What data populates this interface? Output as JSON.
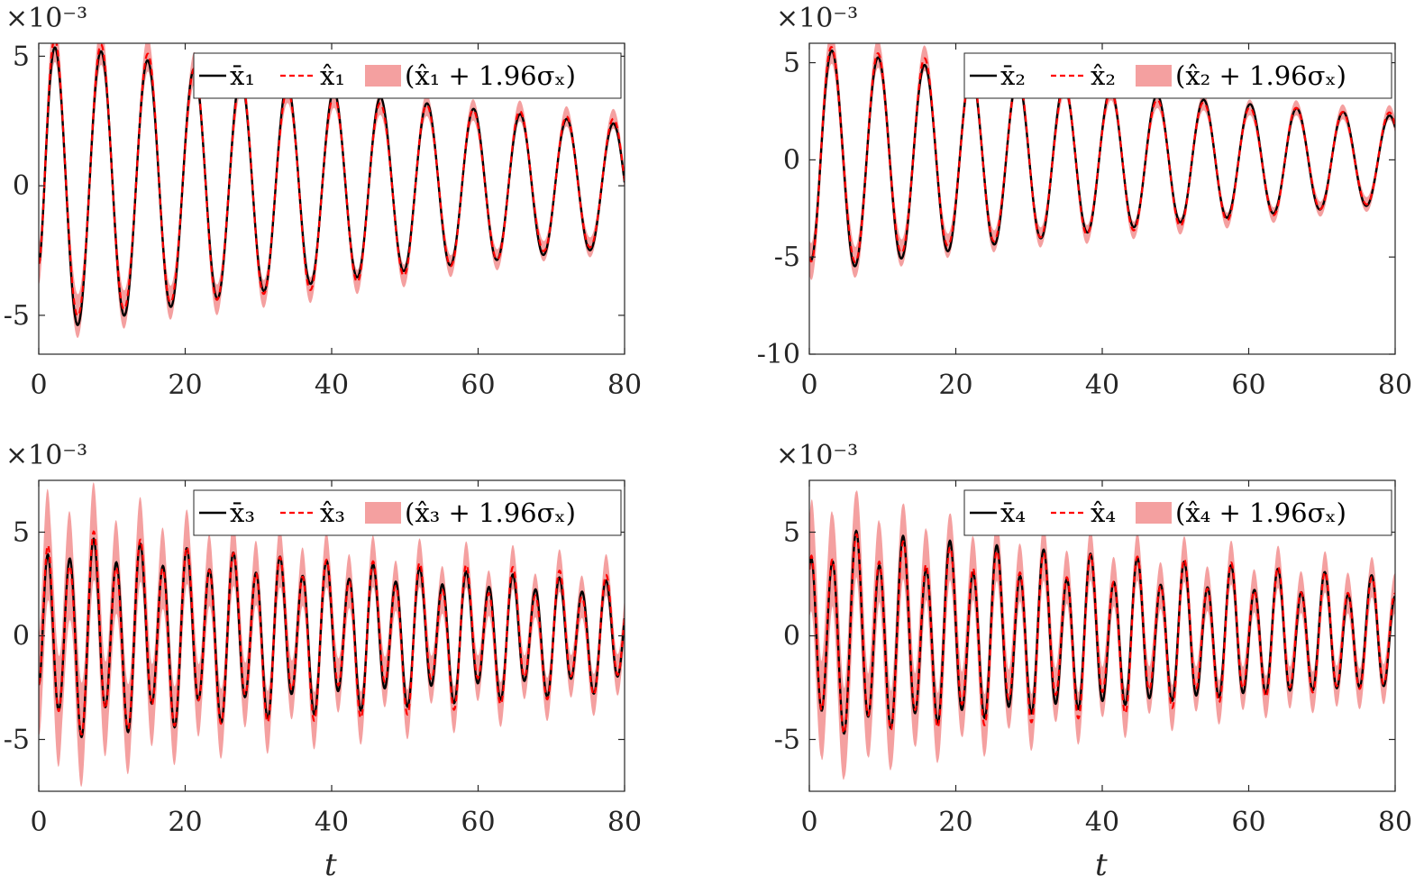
{
  "chart_data": [
    {
      "type": "line",
      "multiplier": "×10⁻³",
      "xlabel": "",
      "xlim": [
        0,
        80
      ],
      "ylim": [
        -6.5,
        5.5
      ],
      "xticks": [
        0,
        20,
        40,
        60,
        80
      ],
      "yticks": [
        -5,
        0,
        5
      ],
      "ytick_labels": [
        "-5",
        "0",
        "5"
      ],
      "signal": {
        "offset": -3.0,
        "amp": 5.7,
        "decay": 0.011,
        "period": 6.36,
        "phase": -0.55,
        "freq2_period": 0,
        "amp2": 0
      },
      "band_halfwidth": {
        "start": 0.8,
        "end": 0.35
      },
      "legend": [
        "x̄₁",
        "x̂₁",
        "(x̂₁ + 1.96σₓ)"
      ],
      "series": [
        {
          "name": "x̄₁",
          "style": "solid",
          "color": "#000000"
        },
        {
          "name": "x̂₁",
          "style": "dashed",
          "color": "#ff0000"
        },
        {
          "name": "(x̂₁ + 1.96σₓ)",
          "style": "band",
          "color": "#f4a0a0"
        }
      ]
    },
    {
      "type": "line",
      "multiplier": "×10⁻³",
      "xlabel": "",
      "xlim": [
        0,
        80
      ],
      "ylim": [
        -10,
        6
      ],
      "xticks": [
        0,
        20,
        40,
        60,
        80
      ],
      "yticks": [
        -10,
        -5,
        0,
        5
      ],
      "ytick_labels": [
        "-10",
        "-5",
        "0",
        "5"
      ],
      "signal": {
        "offset": -5.0,
        "amp": 5.9,
        "decay": 0.012,
        "period": 6.35,
        "phase": -1.45,
        "freq2_period": 0,
        "amp2": 0
      },
      "band_halfwidth": {
        "start": 0.9,
        "end": 0.35
      },
      "legend": [
        "x̄₂",
        "x̂₂",
        "(x̂₂ + 1.96σₓ)"
      ],
      "series": [
        {
          "name": "x̄₂",
          "style": "solid",
          "color": "#000000"
        },
        {
          "name": "x̂₂",
          "style": "dashed",
          "color": "#ff0000"
        },
        {
          "name": "(x̂₂ + 1.96σₓ)",
          "style": "band",
          "color": "#f4a0a0"
        }
      ]
    },
    {
      "type": "line",
      "multiplier": "×10⁻³",
      "xlabel": "t",
      "xlim": [
        0,
        80
      ],
      "ylim": [
        -7.5,
        7.5
      ],
      "xticks": [
        0,
        20,
        40,
        60,
        80
      ],
      "yticks": [
        -5,
        0,
        5
      ],
      "ytick_labels": [
        "-5",
        "0",
        "5"
      ],
      "signal": {
        "offset": -2.3,
        "amp": 4.4,
        "decay": 0.008,
        "period": 3.18,
        "phase": -0.6,
        "freq2_period": 6.36,
        "amp2": 0.9
      },
      "band_halfwidth": {
        "start": 2.4,
        "end": 0.9
      },
      "legend": [
        "x̄₃",
        "x̂₃",
        "(x̂₃ + 1.96σₓ)"
      ],
      "series": [
        {
          "name": "x̄₃",
          "style": "solid",
          "color": "#000000"
        },
        {
          "name": "x̂₃",
          "style": "dashed",
          "color": "#ff0000"
        },
        {
          "name": "(x̂₃ + 1.96σₓ)",
          "style": "band",
          "color": "#f4a0a0"
        }
      ]
    },
    {
      "type": "line",
      "multiplier": "×10⁻³",
      "xlabel": "t",
      "xlim": [
        0,
        80
      ],
      "ylim": [
        -7.5,
        7.5
      ],
      "xticks": [
        0,
        20,
        40,
        60,
        80
      ],
      "yticks": [
        -5,
        0,
        5
      ],
      "ytick_labels": [
        "-5",
        "0",
        "5"
      ],
      "signal": {
        "offset": 3.2,
        "amp": 4.5,
        "decay": 0.008,
        "period": 3.2,
        "phase": 1.6,
        "freq2_period": 6.36,
        "amp2": 0.9
      },
      "band_halfwidth": {
        "start": 2.4,
        "end": 0.9
      },
      "legend": [
        "x̄₄",
        "x̂₄",
        "(x̂₄ + 1.96σₓ)"
      ],
      "series": [
        {
          "name": "x̄₄",
          "style": "solid",
          "color": "#000000"
        },
        {
          "name": "x̂₄",
          "style": "dashed",
          "color": "#ff0000"
        },
        {
          "name": "(x̂₄ + 1.96σₓ)",
          "style": "band",
          "color": "#f4a0a0"
        }
      ]
    }
  ]
}
